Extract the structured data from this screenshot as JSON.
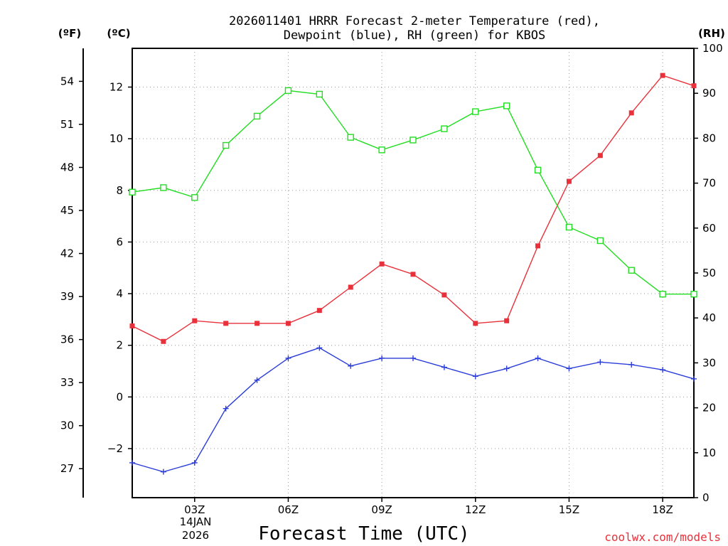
{
  "chart_data": {
    "type": "line",
    "title_line1": "2026011401 HRRR Forecast 2-meter Temperature (red),",
    "title_line2": "Dewpoint (blue), RH (green) for KBOS",
    "xlabel": "Forecast Time (UTC)",
    "date_line1": "14JAN",
    "date_line2": "2026",
    "credit": "coolwx.com/models",
    "unit_f": "(ºF)",
    "unit_c": "(ºC)",
    "unit_rh": "(RH)",
    "x_hours": [
      1,
      2,
      3,
      4,
      5,
      6,
      7,
      8,
      9,
      10,
      11,
      12,
      13,
      14,
      15,
      16,
      17,
      18,
      19
    ],
    "xlim": [
      1,
      19
    ],
    "x_ticks": [
      {
        "hour": 3,
        "label": "03Z"
      },
      {
        "hour": 6,
        "label": "06Z"
      },
      {
        "hour": 9,
        "label": "09Z"
      },
      {
        "hour": 12,
        "label": "12Z"
      },
      {
        "hour": 15,
        "label": "15Z"
      },
      {
        "hour": 18,
        "label": "18Z"
      }
    ],
    "ylim_c": [
      -3.9,
      13.5
    ],
    "y_ticks_c": [
      -2,
      0,
      2,
      4,
      6,
      8,
      10,
      12
    ],
    "y_ticks_f": [
      27,
      30,
      33,
      36,
      39,
      42,
      45,
      48,
      51,
      54
    ],
    "ylim_rh": [
      0,
      100
    ],
    "y_ticks_rh": [
      0,
      10,
      20,
      30,
      40,
      50,
      60,
      70,
      80,
      90,
      100
    ],
    "series": [
      {
        "name": "Temperature",
        "color": "#e8313b",
        "axis": "c",
        "marker": "filled-square",
        "values": [
          2.75,
          2.15,
          2.95,
          2.85,
          2.85,
          2.85,
          3.35,
          4.25,
          5.15,
          4.75,
          3.95,
          2.85,
          2.95,
          5.85,
          8.35,
          9.35,
          11.0,
          12.45,
          12.05
        ]
      },
      {
        "name": "Dewpoint",
        "color": "#2b3dd8",
        "axis": "c",
        "marker": "plus",
        "values": [
          -2.55,
          -2.9,
          -2.55,
          -0.45,
          0.65,
          1.5,
          1.9,
          1.2,
          1.5,
          1.5,
          1.15,
          0.8,
          1.1,
          1.5,
          1.1,
          1.35,
          1.25,
          1.05,
          0.7
        ]
      },
      {
        "name": "RH",
        "color": "#22dd22",
        "axis": "rh",
        "marker": "open-square",
        "values": [
          68.0,
          69.0,
          66.8,
          78.4,
          84.9,
          90.6,
          89.8,
          80.2,
          77.4,
          79.6,
          82.1,
          85.9,
          87.2,
          72.9,
          60.2,
          57.2,
          50.6,
          45.3,
          45.3
        ]
      }
    ]
  }
}
